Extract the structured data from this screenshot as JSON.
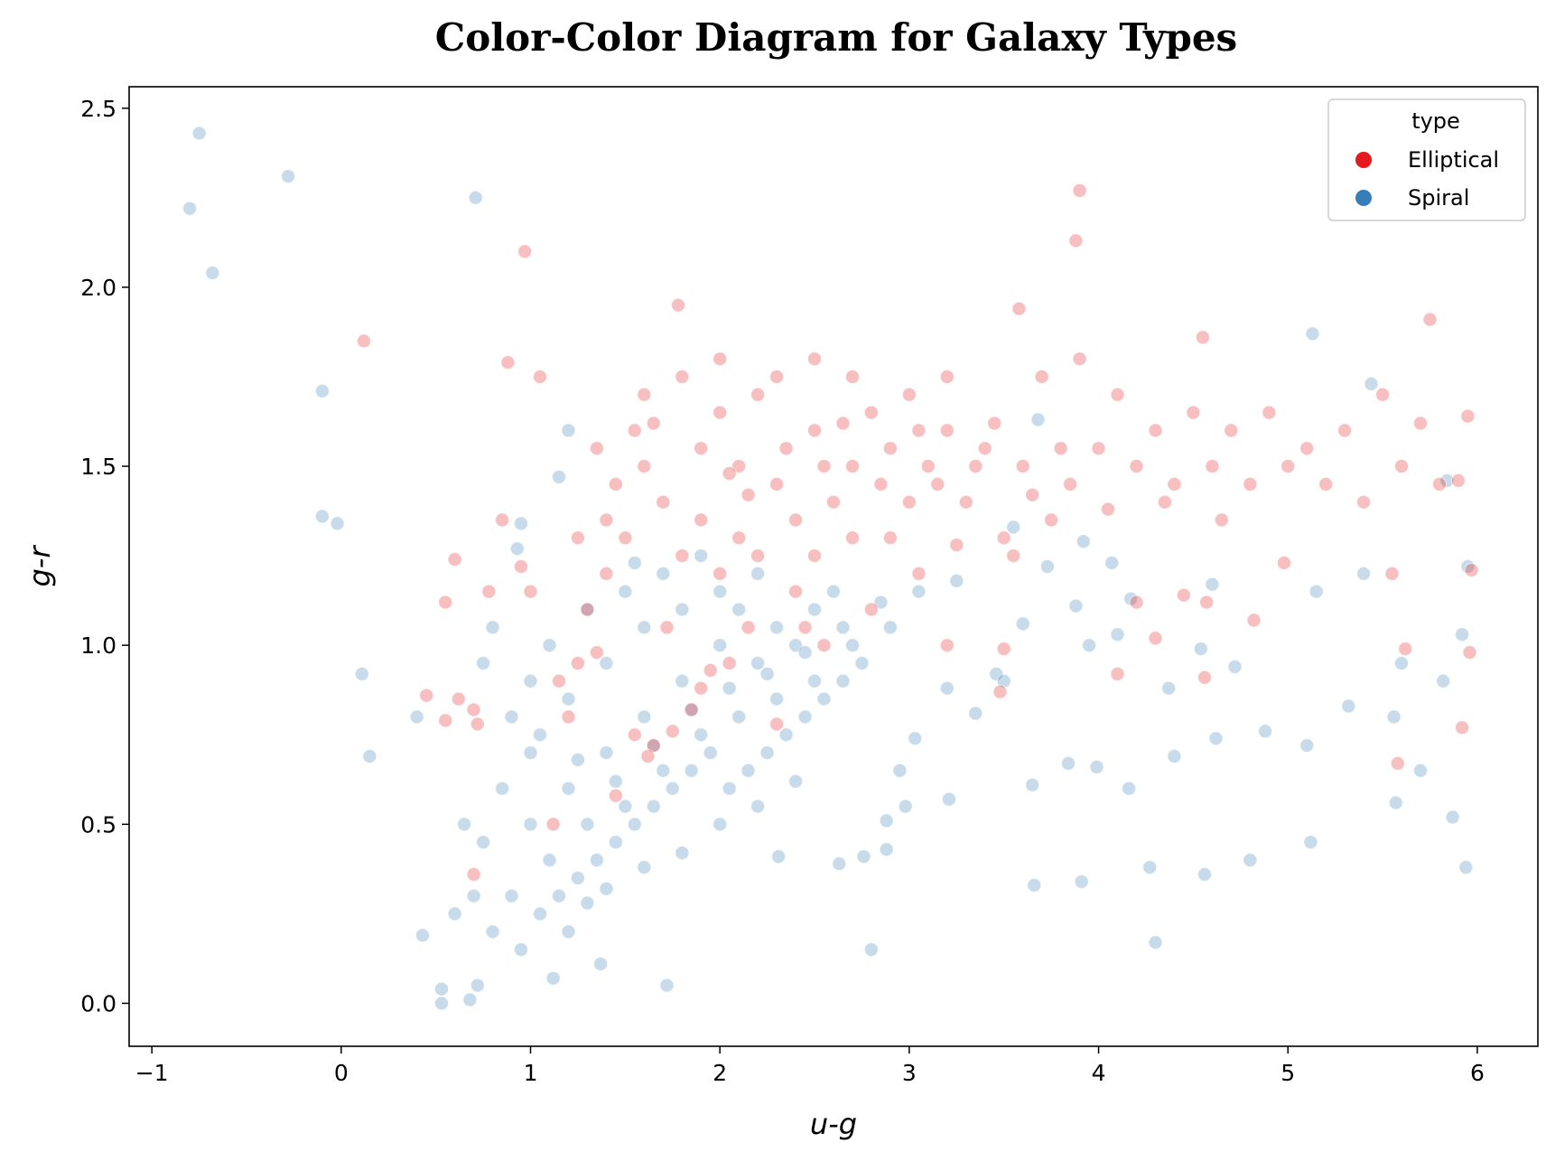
{
  "chart_data": {
    "type": "scatter",
    "title": "Color-Color Diagram for Galaxy Types",
    "xlabel": "u-g",
    "ylabel": "g-r",
    "xlim": [
      -1.12,
      6.32
    ],
    "ylim": [
      -0.12,
      2.56
    ],
    "xticks": [
      -1,
      0,
      1,
      2,
      3,
      4,
      5,
      6
    ],
    "yticks": [
      0.0,
      0.5,
      1.0,
      1.5,
      2.0,
      2.5
    ],
    "xtick_labels": [
      "−1",
      "0",
      "1",
      "2",
      "3",
      "4",
      "5",
      "6"
    ],
    "ytick_labels": [
      "0.0",
      "0.5",
      "1.0",
      "1.5",
      "2.0",
      "2.5"
    ],
    "grid": false,
    "legend": {
      "title": "type",
      "placement": "top-right"
    },
    "series": [
      {
        "name": "Elliptical",
        "color": "#e41a1c",
        "points": [
          [
            2.1,
            1.5
          ],
          [
            1.9,
            1.55
          ],
          [
            2.3,
            1.45
          ],
          [
            2.5,
            1.6
          ],
          [
            2.7,
            1.5
          ],
          [
            2.9,
            1.55
          ],
          [
            3.1,
            1.5
          ],
          [
            1.7,
            1.4
          ],
          [
            1.6,
            1.5
          ],
          [
            2.0,
            1.65
          ],
          [
            2.2,
            1.7
          ],
          [
            2.4,
            1.35
          ],
          [
            2.6,
            1.4
          ],
          [
            2.8,
            1.65
          ],
          [
            3.0,
            1.4
          ],
          [
            3.2,
            1.6
          ],
          [
            3.4,
            1.55
          ],
          [
            3.6,
            1.5
          ],
          [
            1.8,
            1.25
          ],
          [
            2.0,
            1.2
          ],
          [
            2.2,
            1.25
          ],
          [
            2.4,
            1.15
          ],
          [
            1.5,
            1.3
          ],
          [
            1.4,
            1.2
          ],
          [
            1.3,
            1.1
          ],
          [
            1.9,
            1.35
          ],
          [
            2.1,
            1.3
          ],
          [
            2.5,
            1.25
          ],
          [
            2.7,
            1.3
          ],
          [
            2.9,
            1.3
          ],
          [
            3.3,
            1.4
          ],
          [
            3.5,
            1.3
          ],
          [
            1.6,
            1.7
          ],
          [
            1.8,
            1.75
          ],
          [
            2.0,
            1.8
          ],
          [
            2.3,
            1.75
          ],
          [
            2.5,
            1.8
          ],
          [
            2.7,
            1.75
          ],
          [
            3.0,
            1.7
          ],
          [
            3.2,
            1.75
          ],
          [
            3.8,
            1.55
          ],
          [
            4.0,
            1.55
          ],
          [
            4.2,
            1.5
          ],
          [
            4.4,
            1.45
          ],
          [
            4.6,
            1.5
          ],
          [
            4.8,
            1.45
          ],
          [
            5.0,
            1.5
          ],
          [
            5.2,
            1.45
          ],
          [
            5.4,
            1.4
          ],
          [
            5.6,
            1.5
          ],
          [
            5.8,
            1.45
          ],
          [
            3.7,
            1.75
          ],
          [
            3.9,
            1.8
          ],
          [
            4.1,
            1.7
          ],
          [
            4.3,
            1.6
          ],
          [
            4.5,
            1.65
          ],
          [
            4.7,
            1.6
          ],
          [
            4.9,
            1.65
          ],
          [
            5.1,
            1.55
          ],
          [
            5.3,
            1.6
          ],
          [
            5.5,
            1.7
          ],
          [
            5.7,
            1.62
          ],
          [
            5.95,
            1.64
          ],
          [
            5.9,
            1.46
          ],
          [
            3.9,
            2.27
          ],
          [
            3.88,
            2.13
          ],
          [
            0.97,
            2.1
          ],
          [
            0.12,
            1.85
          ],
          [
            1.05,
            1.75
          ],
          [
            0.88,
            1.79
          ],
          [
            1.78,
            1.95
          ],
          [
            3.58,
            1.94
          ],
          [
            5.75,
            1.91
          ],
          [
            4.55,
            1.86
          ],
          [
            1.85,
            0.82
          ],
          [
            1.9,
            0.88
          ],
          [
            1.95,
            0.93
          ],
          [
            1.75,
            0.76
          ],
          [
            1.65,
            0.72
          ],
          [
            1.62,
            0.69
          ],
          [
            0.85,
            1.35
          ],
          [
            0.95,
            1.22
          ],
          [
            1.0,
            1.15
          ],
          [
            0.78,
            1.15
          ],
          [
            0.55,
            1.12
          ],
          [
            0.6,
            1.24
          ],
          [
            0.62,
            0.85
          ],
          [
            0.7,
            0.82
          ],
          [
            0.72,
            0.78
          ],
          [
            0.45,
            0.86
          ],
          [
            0.55,
            0.79
          ],
          [
            1.12,
            0.5
          ],
          [
            0.7,
            0.36
          ],
          [
            4.57,
            1.12
          ],
          [
            4.45,
            1.14
          ],
          [
            4.3,
            1.02
          ],
          [
            4.1,
            0.92
          ],
          [
            3.5,
            0.99
          ],
          [
            3.48,
            0.87
          ],
          [
            4.56,
            0.91
          ],
          [
            4.82,
            1.07
          ],
          [
            4.98,
            1.23
          ],
          [
            5.55,
            1.2
          ],
          [
            5.62,
            0.99
          ],
          [
            5.58,
            0.67
          ],
          [
            5.92,
            0.77
          ],
          [
            5.96,
            0.98
          ],
          [
            5.97,
            1.21
          ],
          [
            4.2,
            1.12
          ],
          [
            3.2,
            1.0
          ],
          [
            2.55,
            1.0
          ],
          [
            2.3,
            0.78
          ],
          [
            2.15,
            1.05
          ],
          [
            1.55,
            0.75
          ],
          [
            1.45,
            0.58
          ],
          [
            1.35,
            0.98
          ],
          [
            1.2,
            0.8
          ],
          [
            1.15,
            0.9
          ],
          [
            1.25,
            0.95
          ],
          [
            2.05,
            0.95
          ],
          [
            1.72,
            1.05
          ],
          [
            2.45,
            1.05
          ],
          [
            2.8,
            1.1
          ],
          [
            3.05,
            1.2
          ],
          [
            3.25,
            1.28
          ],
          [
            3.55,
            1.25
          ],
          [
            3.75,
            1.35
          ],
          [
            4.05,
            1.38
          ],
          [
            4.35,
            1.4
          ],
          [
            4.65,
            1.35
          ],
          [
            1.45,
            1.45
          ],
          [
            1.55,
            1.6
          ],
          [
            1.65,
            1.62
          ],
          [
            1.35,
            1.55
          ],
          [
            1.4,
            1.35
          ],
          [
            1.25,
            1.3
          ],
          [
            2.35,
            1.55
          ],
          [
            2.55,
            1.5
          ],
          [
            2.15,
            1.42
          ],
          [
            2.05,
            1.48
          ],
          [
            2.65,
            1.62
          ],
          [
            2.85,
            1.45
          ],
          [
            3.05,
            1.6
          ],
          [
            3.15,
            1.45
          ],
          [
            3.35,
            1.5
          ],
          [
            3.45,
            1.62
          ],
          [
            3.65,
            1.42
          ],
          [
            3.85,
            1.45
          ]
        ]
      },
      {
        "name": "Spiral",
        "color": "#377eb8",
        "points": [
          [
            1.0,
            0.5
          ],
          [
            1.2,
            0.6
          ],
          [
            1.4,
            0.7
          ],
          [
            1.6,
            0.8
          ],
          [
            1.8,
            0.9
          ],
          [
            2.0,
            1.0
          ],
          [
            2.2,
            0.95
          ],
          [
            2.4,
            1.0
          ],
          [
            0.9,
            0.3
          ],
          [
            1.1,
            0.4
          ],
          [
            1.3,
            0.5
          ],
          [
            1.5,
            0.55
          ],
          [
            1.7,
            0.65
          ],
          [
            1.9,
            0.75
          ],
          [
            2.1,
            0.8
          ],
          [
            2.3,
            0.85
          ],
          [
            2.5,
            0.9
          ],
          [
            2.7,
            1.0
          ],
          [
            2.9,
            1.05
          ],
          [
            1.0,
            0.7
          ],
          [
            1.2,
            0.85
          ],
          [
            1.4,
            0.95
          ],
          [
            1.6,
            1.05
          ],
          [
            1.8,
            1.1
          ],
          [
            2.0,
            1.15
          ],
          [
            2.2,
            1.2
          ],
          [
            0.8,
            0.2
          ],
          [
            0.95,
            0.15
          ],
          [
            1.05,
            0.25
          ],
          [
            1.15,
            0.3
          ],
          [
            1.25,
            0.35
          ],
          [
            1.35,
            0.4
          ],
          [
            1.45,
            0.45
          ],
          [
            1.55,
            0.5
          ],
          [
            1.65,
            0.55
          ],
          [
            1.75,
            0.6
          ],
          [
            1.85,
            0.65
          ],
          [
            1.95,
            0.7
          ],
          [
            2.05,
            0.6
          ],
          [
            2.15,
            0.65
          ],
          [
            2.25,
            0.7
          ],
          [
            2.35,
            0.75
          ],
          [
            2.45,
            0.8
          ],
          [
            2.55,
            0.85
          ],
          [
            2.65,
            0.9
          ],
          [
            2.75,
            0.95
          ],
          [
            0.85,
            0.6
          ],
          [
            0.9,
            0.8
          ],
          [
            1.0,
            0.9
          ],
          [
            1.1,
            1.0
          ],
          [
            1.3,
            1.1
          ],
          [
            1.5,
            1.15
          ],
          [
            1.7,
            1.2
          ],
          [
            1.9,
            1.25
          ],
          [
            2.1,
            1.1
          ],
          [
            2.3,
            1.05
          ],
          [
            2.5,
            1.1
          ],
          [
            2.6,
            1.15
          ],
          [
            -0.75,
            2.43
          ],
          [
            -0.8,
            2.22
          ],
          [
            -0.28,
            2.31
          ],
          [
            -0.68,
            2.04
          ],
          [
            0.71,
            2.25
          ],
          [
            -0.1,
            1.71
          ],
          [
            -0.1,
            1.36
          ],
          [
            -0.02,
            1.34
          ],
          [
            0.11,
            0.92
          ],
          [
            0.15,
            0.69
          ],
          [
            0.4,
            0.8
          ],
          [
            0.43,
            0.19
          ],
          [
            0.53,
            0.04
          ],
          [
            0.53,
            0.0
          ],
          [
            0.68,
            0.01
          ],
          [
            0.72,
            0.05
          ],
          [
            1.72,
            0.05
          ],
          [
            2.8,
            0.15
          ],
          [
            4.3,
            0.17
          ],
          [
            5.44,
            1.73
          ],
          [
            5.13,
            1.87
          ],
          [
            5.84,
            1.46
          ],
          [
            5.95,
            1.22
          ],
          [
            5.92,
            1.03
          ],
          [
            5.87,
            0.52
          ],
          [
            5.94,
            0.38
          ],
          [
            5.57,
            0.56
          ],
          [
            5.12,
            0.45
          ],
          [
            4.8,
            0.4
          ],
          [
            4.56,
            0.36
          ],
          [
            4.27,
            0.38
          ],
          [
            3.91,
            0.34
          ],
          [
            3.66,
            0.33
          ],
          [
            3.65,
            0.61
          ],
          [
            3.84,
            0.67
          ],
          [
            3.99,
            0.66
          ],
          [
            4.16,
            0.6
          ],
          [
            4.4,
            0.69
          ],
          [
            4.62,
            0.74
          ],
          [
            4.88,
            0.76
          ],
          [
            5.1,
            0.72
          ],
          [
            5.32,
            0.83
          ],
          [
            5.56,
            0.8
          ],
          [
            5.7,
            0.65
          ],
          [
            5.82,
            0.9
          ],
          [
            5.6,
            0.95
          ],
          [
            5.15,
            1.15
          ],
          [
            5.4,
            1.2
          ],
          [
            4.6,
            1.17
          ],
          [
            4.72,
            0.94
          ],
          [
            4.54,
            0.99
          ],
          [
            4.37,
            0.88
          ],
          [
            3.95,
            1.0
          ],
          [
            3.88,
            1.11
          ],
          [
            3.6,
            1.06
          ],
          [
            3.2,
            0.88
          ],
          [
            3.35,
            0.81
          ],
          [
            3.03,
            0.74
          ],
          [
            2.95,
            0.65
          ],
          [
            3.21,
            0.57
          ],
          [
            2.98,
            0.55
          ],
          [
            2.88,
            0.51
          ],
          [
            2.88,
            0.43
          ],
          [
            2.76,
            0.41
          ],
          [
            2.63,
            0.39
          ],
          [
            2.31,
            0.41
          ],
          [
            1.37,
            0.11
          ],
          [
            1.12,
            0.07
          ],
          [
            1.55,
            1.23
          ],
          [
            1.2,
            1.6
          ],
          [
            1.15,
            1.47
          ],
          [
            0.95,
            1.34
          ],
          [
            0.93,
            1.27
          ],
          [
            3.68,
            1.63
          ],
          [
            3.55,
            1.33
          ],
          [
            3.73,
            1.22
          ],
          [
            3.92,
            1.29
          ],
          [
            4.07,
            1.23
          ],
          [
            4.17,
            1.13
          ],
          [
            4.1,
            1.03
          ],
          [
            3.46,
            0.92
          ],
          [
            3.5,
            0.9
          ],
          [
            1.2,
            0.2
          ],
          [
            1.3,
            0.28
          ],
          [
            1.4,
            0.32
          ],
          [
            1.6,
            0.38
          ],
          [
            1.8,
            0.42
          ],
          [
            2.0,
            0.5
          ],
          [
            2.2,
            0.55
          ],
          [
            2.4,
            0.62
          ],
          [
            0.75,
            0.45
          ],
          [
            0.7,
            0.3
          ],
          [
            0.65,
            0.5
          ],
          [
            0.6,
            0.25
          ],
          [
            0.75,
            0.95
          ],
          [
            0.8,
            1.05
          ],
          [
            1.05,
            0.75
          ],
          [
            1.25,
            0.68
          ],
          [
            1.45,
            0.62
          ],
          [
            1.65,
            0.72
          ],
          [
            1.85,
            0.82
          ],
          [
            2.05,
            0.88
          ],
          [
            2.25,
            0.92
          ],
          [
            2.45,
            0.98
          ],
          [
            2.65,
            1.05
          ],
          [
            2.85,
            1.12
          ],
          [
            3.05,
            1.15
          ],
          [
            3.25,
            1.18
          ]
        ]
      }
    ]
  }
}
